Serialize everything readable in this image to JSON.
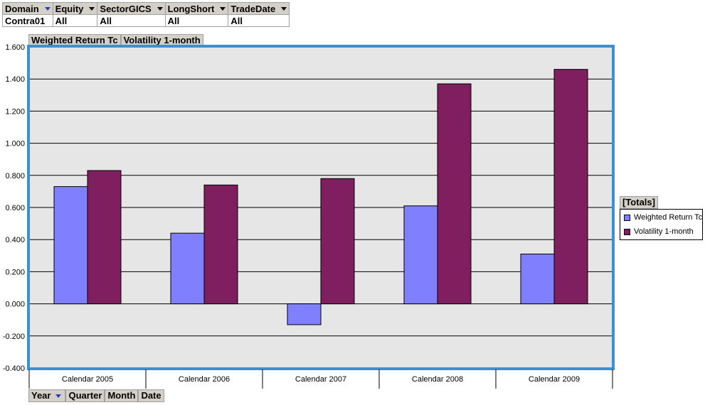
{
  "filters": {
    "fields": [
      {
        "label": "Domain",
        "value": "Contra01",
        "arrow": "blue-arrow"
      },
      {
        "label": "Equity",
        "value": "All",
        "arrow": "black-arrow"
      },
      {
        "label": "SectorGICS",
        "value": "All",
        "arrow": "black-arrow"
      },
      {
        "label": "LongShort",
        "value": "All",
        "arrow": "black-arrow"
      },
      {
        "label": "TradeDate",
        "value": "All",
        "arrow": "black-arrow"
      }
    ]
  },
  "series_buttons": [
    "Weighted Return Tc",
    "Volatility 1-month"
  ],
  "row_buttons": [
    "Year",
    "Quarter",
    "Month",
    "Date"
  ],
  "legend": {
    "title": "[Totals]"
  },
  "colors": {
    "plot_background": "#e6e6e6",
    "plot_border": "#3d8fd4",
    "series_1": "#8080ff",
    "series_2": "#7f1f5f"
  },
  "chart_data": {
    "type": "bar",
    "categories": [
      "Calendar 2005",
      "Calendar 2006",
      "Calendar 2007",
      "Calendar 2008",
      "Calendar 2009"
    ],
    "series": [
      {
        "name": "Weighted Return Tc",
        "values": [
          0.73,
          0.44,
          -0.13,
          0.61,
          0.31
        ]
      },
      {
        "name": "Volatility 1-month",
        "values": [
          0.83,
          0.74,
          0.78,
          1.37,
          1.46
        ]
      }
    ],
    "yticks": [
      "1.600",
      "1.400",
      "1.200",
      "1.000",
      "0.800",
      "0.600",
      "0.400",
      "0.200",
      "0.000",
      "-0.200",
      "-0.400"
    ],
    "ylim": [
      -0.4,
      1.6
    ],
    "ystep": 0.2,
    "grid": true,
    "legend_position": "right"
  }
}
